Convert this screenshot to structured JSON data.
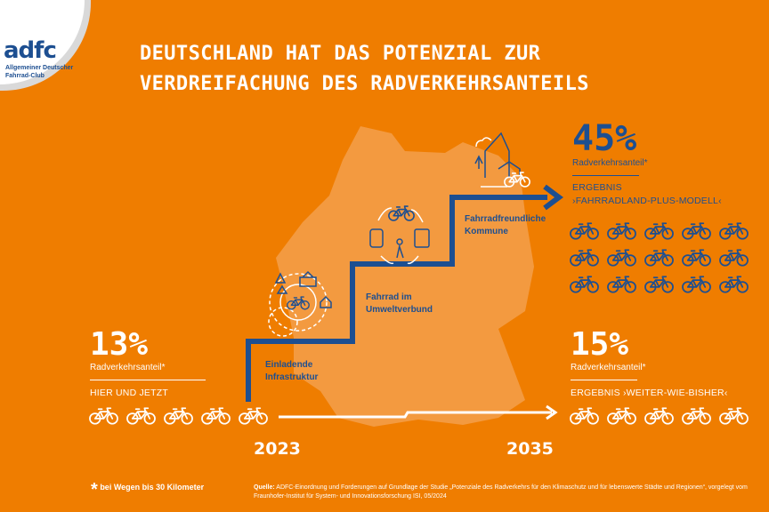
{
  "logo": {
    "wordmark": "adfc",
    "subtitle": "Allgemeiner Deutscher Fahrrad-Club"
  },
  "title": {
    "line1": "DEUTSCHLAND HAT DAS POTENZIAL ZUR",
    "line2": "VERDREIFACHUNG DES RADVERKEHRSANTEILS"
  },
  "colors": {
    "background": "#EF7D00",
    "map": "#F39A40",
    "blue": "#1D4F91",
    "white": "#FFFFFF"
  },
  "current": {
    "value": "13%",
    "label": "Radverkehrsanteil*",
    "caption": "HIER UND JETZT",
    "bikes": 5
  },
  "plus_model": {
    "value": "45%",
    "label": "Radverkehrsanteil*",
    "caption_line1": "ERGEBNIS",
    "caption_line2": "›FAHRRADLAND-PLUS-MODELL‹",
    "bikes": 15
  },
  "business_as_usual": {
    "value": "15%",
    "label": "Radverkehrsanteil*",
    "caption": "ERGEBNIS ›WEITER-WIE-BISHER‹",
    "bikes": 5
  },
  "steps": [
    {
      "line1": "Einladende",
      "line2": "Infrastruktur"
    },
    {
      "line1": "Fahrrad im",
      "line2": "Umweltverbund"
    },
    {
      "line1": "Fahrradfreundliche",
      "line2": "Kommune"
    }
  ],
  "timeline": {
    "start": "2023",
    "end": "2035"
  },
  "footnote": {
    "mark": "*",
    "text": "bei Wegen bis 30 Kilometer"
  },
  "source": {
    "label": "Quelle:",
    "text": "ADFC-Einordnung und Forderungen auf Grundlage der Studie „Potenziale des Radverkehrs für den Klimaschutz und für lebenswerte Städte und Regionen“, vorgelegt vom Fraunhofer-Institut für System- und Innovationsforschung ISI, 05/2024"
  }
}
